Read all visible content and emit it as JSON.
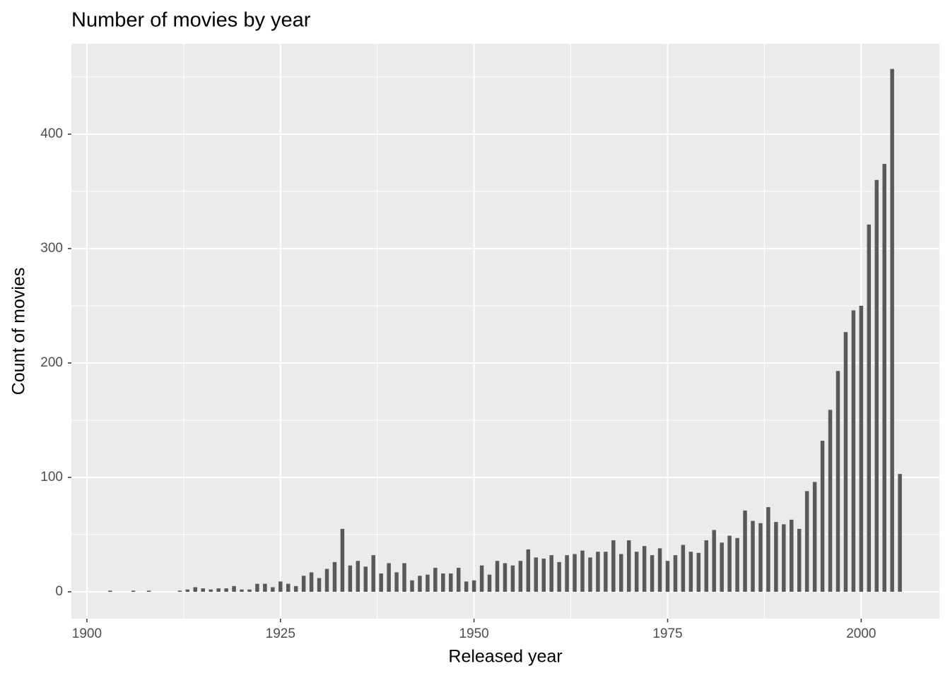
{
  "chart_data": {
    "type": "bar",
    "title": "Number of movies by year",
    "xlabel": "Released year",
    "ylabel": "Count of movies",
    "x": [
      1903,
      1906,
      1908,
      1912,
      1913,
      1914,
      1915,
      1916,
      1917,
      1918,
      1919,
      1920,
      1921,
      1922,
      1923,
      1924,
      1925,
      1926,
      1927,
      1928,
      1929,
      1930,
      1931,
      1932,
      1933,
      1934,
      1935,
      1936,
      1937,
      1938,
      1939,
      1940,
      1941,
      1942,
      1943,
      1944,
      1945,
      1946,
      1947,
      1948,
      1949,
      1950,
      1951,
      1952,
      1953,
      1954,
      1955,
      1956,
      1957,
      1958,
      1959,
      1960,
      1961,
      1962,
      1963,
      1964,
      1965,
      1966,
      1967,
      1968,
      1969,
      1970,
      1971,
      1972,
      1973,
      1974,
      1975,
      1976,
      1977,
      1978,
      1979,
      1980,
      1981,
      1982,
      1983,
      1984,
      1985,
      1986,
      1987,
      1988,
      1989,
      1990,
      1991,
      1992,
      1993,
      1994,
      1995,
      1996,
      1997,
      1998,
      1999,
      2000,
      2001,
      2002,
      2003,
      2004,
      2005
    ],
    "values": [
      1,
      1,
      1,
      1,
      2,
      4,
      3,
      2,
      3,
      3,
      5,
      2,
      2,
      7,
      7,
      4,
      9,
      7,
      5,
      14,
      17,
      12,
      20,
      26,
      55,
      23,
      27,
      22,
      32,
      16,
      25,
      17,
      25,
      10,
      14,
      15,
      21,
      16,
      16,
      21,
      9,
      10,
      23,
      15,
      27,
      25,
      23,
      27,
      37,
      30,
      29,
      32,
      26,
      32,
      33,
      36,
      30,
      35,
      35,
      45,
      33,
      45,
      35,
      40,
      32,
      38,
      27,
      32,
      41,
      35,
      34,
      45,
      54,
      43,
      49,
      47,
      71,
      62,
      60,
      74,
      61,
      59,
      63,
      55,
      88,
      96,
      132,
      159,
      193,
      227,
      246,
      250,
      321,
      360,
      374,
      457,
      103
    ],
    "color": "#595959",
    "xlim": [
      1898,
      2010.1
    ],
    "xticks": [
      1900,
      1925,
      1950,
      1975,
      2000
    ],
    "ylim": [
      -23.5,
      479
    ],
    "yticks": [
      0,
      100,
      200,
      300,
      400
    ],
    "grid": true,
    "minor_grid": true
  }
}
